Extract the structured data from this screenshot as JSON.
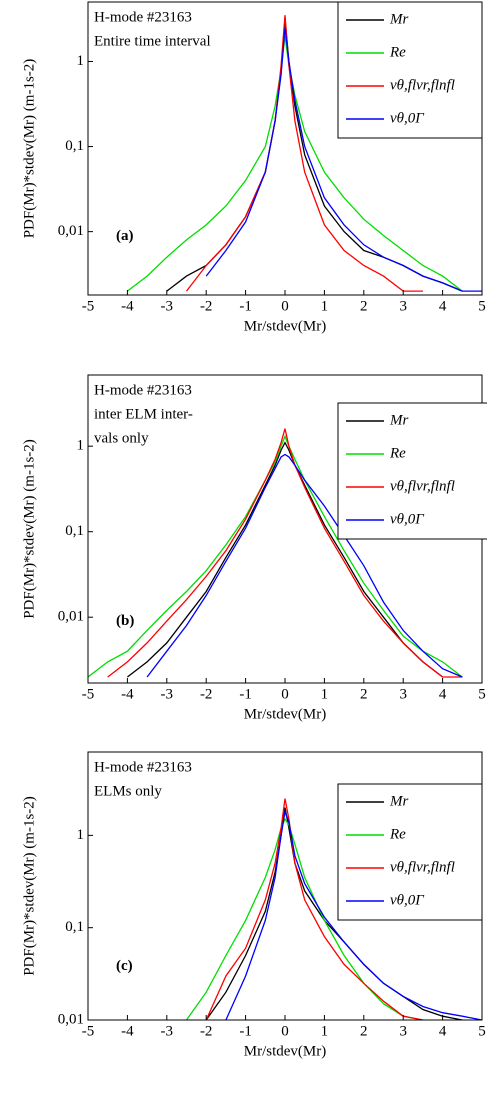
{
  "chart_data": [
    {
      "type": "line",
      "panel_label": "(a)",
      "annotations": [
        "H-mode #23163",
        "Entire time interval"
      ],
      "xlabel": "Mr/stdev(Mr)",
      "ylabel": "PDF(Mr)*stdev(Mr) (m-1s-2)",
      "log_y": true,
      "legend": "upper right",
      "xlim": [
        -5,
        5
      ],
      "xticks": [
        -5,
        -4,
        -3,
        -2,
        -1,
        0,
        1,
        2,
        3,
        4,
        5
      ],
      "ylim": [
        0.0018,
        5
      ],
      "yticks": [
        {
          "value": 0.01,
          "label": "0,01"
        },
        {
          "value": 0.1,
          "label": "0,1"
        },
        1
      ],
      "x": [
        -4.5,
        -4,
        -3.5,
        -3,
        -2.5,
        -2,
        -1.5,
        -1,
        -0.5,
        -0.25,
        -0.1,
        0,
        0.1,
        0.25,
        0.5,
        1,
        1.5,
        2,
        2.5,
        3,
        3.5,
        4,
        4.5,
        5
      ],
      "series": [
        {
          "name": "Mr",
          "color": "#000000",
          "values": [
            null,
            null,
            null,
            0.002,
            0.003,
            0.004,
            0.007,
            0.015,
            0.05,
            0.2,
            0.8,
            3.2,
            1.0,
            0.3,
            0.08,
            0.02,
            0.01,
            0.006,
            0.005,
            0.004,
            0.003,
            0.0025,
            0.002,
            null
          ]
        },
        {
          "name": "Re",
          "color": "#00dd00",
          "values": [
            null,
            0.002,
            0.003,
            0.005,
            0.008,
            0.012,
            0.02,
            0.04,
            0.1,
            0.3,
            0.8,
            2,
            0.9,
            0.4,
            0.15,
            0.05,
            0.025,
            0.014,
            0.009,
            0.006,
            0.004,
            0.003,
            0.002,
            null
          ]
        },
        {
          "name": "vθ,flvr,flnfl",
          "color": "#ff0000",
          "values": [
            null,
            null,
            null,
            null,
            0.002,
            0.004,
            0.007,
            0.015,
            0.05,
            0.2,
            0.9,
            3.5,
            0.9,
            0.2,
            0.05,
            0.012,
            0.006,
            0.004,
            0.003,
            0.002,
            0.002,
            null,
            null,
            null
          ]
        },
        {
          "name": "vθ,0Γ",
          "color": "#0000ff",
          "values": [
            null,
            null,
            null,
            null,
            null,
            0.003,
            0.006,
            0.013,
            0.05,
            0.2,
            0.7,
            2.5,
            1,
            0.35,
            0.1,
            0.025,
            0.012,
            0.007,
            0.005,
            0.004,
            0.003,
            0.0025,
            0.002,
            0.002
          ]
        }
      ]
    },
    {
      "type": "line",
      "panel_label": "(b)",
      "annotations": [
        "H-mode #23163",
        "inter ELM inter-",
        "vals only"
      ],
      "xlabel": "Mr/stdev(Mr)",
      "ylabel": "PDF(Mr)*stdev(Mr) (m-1s-2)",
      "log_y": true,
      "legend": "upper right",
      "xlim": [
        -5,
        5
      ],
      "xticks": [
        -5,
        -4,
        -3,
        -2,
        -1,
        0,
        1,
        2,
        3,
        4,
        5
      ],
      "ylim": [
        0.0017,
        6.8
      ],
      "yticks": [
        {
          "value": 0.01,
          "label": "0,01"
        },
        {
          "value": 0.1,
          "label": "0,1"
        },
        1
      ],
      "x": [
        -5,
        -4.5,
        -4,
        -3.5,
        -3,
        -2.5,
        -2,
        -1.5,
        -1,
        -0.5,
        -0.25,
        -0.1,
        0,
        0.1,
        0.25,
        0.5,
        1,
        1.5,
        2,
        2.5,
        3,
        3.5,
        4,
        4.5
      ],
      "series": [
        {
          "name": "Mr",
          "color": "#000000",
          "values": [
            null,
            null,
            0.002,
            0.003,
            0.005,
            0.01,
            0.02,
            0.05,
            0.12,
            0.35,
            0.6,
            0.9,
            1.1,
            0.9,
            0.6,
            0.35,
            0.12,
            0.05,
            0.02,
            0.01,
            0.005,
            0.003,
            0.002,
            null
          ]
        },
        {
          "name": "Re",
          "color": "#00dd00",
          "values": [
            0.002,
            0.003,
            0.004,
            0.007,
            0.012,
            0.02,
            0.035,
            0.07,
            0.15,
            0.4,
            0.65,
            1.0,
            1.3,
            1.0,
            0.7,
            0.4,
            0.15,
            0.06,
            0.025,
            0.012,
            0.006,
            0.004,
            0.003,
            0.002
          ]
        },
        {
          "name": "vθ,flvr,flnfl",
          "color": "#ff0000",
          "values": [
            null,
            0.002,
            0.003,
            0.005,
            0.009,
            0.016,
            0.03,
            0.06,
            0.14,
            0.4,
            0.7,
            1.1,
            1.6,
            1.0,
            0.6,
            0.33,
            0.11,
            0.045,
            0.018,
            0.009,
            0.005,
            0.003,
            0.002,
            0.002
          ]
        },
        {
          "name": "vθ,0Γ",
          "color": "#0000ff",
          "values": [
            null,
            null,
            null,
            0.002,
            0.004,
            0.008,
            0.018,
            0.045,
            0.11,
            0.33,
            0.55,
            0.75,
            0.8,
            0.75,
            0.6,
            0.4,
            0.2,
            0.09,
            0.04,
            0.015,
            0.007,
            0.004,
            0.0025,
            0.002
          ]
        }
      ]
    },
    {
      "type": "line",
      "panel_label": "(c)",
      "annotations": [
        "H-mode #23163",
        "ELMs only"
      ],
      "xlabel": "Mr/stdev(Mr)",
      "ylabel": "PDF(Mr)*stdev(Mr) (m-1s-2)",
      "log_y": true,
      "legend": "upper right",
      "xlim": [
        -5,
        5
      ],
      "xticks": [
        -5,
        -4,
        -3,
        -2,
        -1,
        0,
        1,
        2,
        3,
        4,
        5
      ],
      "ylim": [
        0.01,
        8
      ],
      "yticks": [
        {
          "value": 0.01,
          "label": "0,01"
        },
        {
          "value": 0.1,
          "label": "0,1"
        },
        1
      ],
      "x": [
        -2.5,
        -2,
        -1.5,
        -1,
        -0.5,
        -0.25,
        -0.1,
        0,
        0.1,
        0.25,
        0.5,
        1,
        1.5,
        2,
        2.5,
        3,
        3.5,
        4,
        4.5,
        5
      ],
      "series": [
        {
          "name": "Mr",
          "color": "#000000",
          "values": [
            null,
            0.01,
            0.02,
            0.05,
            0.15,
            0.4,
            1.0,
            2,
            1.2,
            0.5,
            0.25,
            0.12,
            0.07,
            0.04,
            0.025,
            0.018,
            0.013,
            0.011,
            0.01,
            null
          ]
        },
        {
          "name": "Re",
          "color": "#00dd00",
          "values": [
            0.01,
            0.02,
            0.05,
            0.12,
            0.35,
            0.7,
            1.2,
            1.5,
            1.3,
            0.8,
            0.35,
            0.12,
            0.05,
            0.025,
            0.015,
            0.011,
            0.01,
            null,
            null,
            null
          ]
        },
        {
          "name": "vθ,flvr,flnfl",
          "color": "#ff0000",
          "values": [
            null,
            0.01,
            0.03,
            0.06,
            0.2,
            0.5,
            1.2,
            2.5,
            1.5,
            0.5,
            0.2,
            0.08,
            0.04,
            0.025,
            0.016,
            0.011,
            0.01,
            null,
            null,
            null
          ]
        },
        {
          "name": "vθ,0Γ",
          "color": "#0000ff",
          "values": [
            null,
            null,
            0.01,
            0.03,
            0.12,
            0.35,
            1.0,
            1.8,
            1.4,
            0.6,
            0.3,
            0.13,
            0.07,
            0.04,
            0.025,
            0.018,
            0.014,
            0.012,
            0.011,
            0.01
          ]
        }
      ]
    }
  ]
}
